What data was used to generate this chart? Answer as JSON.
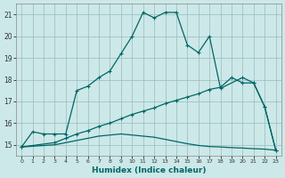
{
  "xlabel": "Humidex (Indice chaleur)",
  "xlim": [
    -0.5,
    23.5
  ],
  "ylim": [
    14.5,
    21.5
  ],
  "xticks": [
    0,
    1,
    2,
    3,
    4,
    5,
    6,
    7,
    8,
    9,
    10,
    11,
    12,
    13,
    14,
    15,
    16,
    17,
    18,
    19,
    20,
    21,
    22,
    23
  ],
  "yticks": [
    15,
    16,
    17,
    18,
    19,
    20,
    21
  ],
  "background_color": "#cce8e8",
  "grid_color": "#99bbbb",
  "line_color": "#006666",
  "line_top_x": [
    0,
    1,
    2,
    3,
    4,
    5,
    6,
    7,
    8,
    9,
    10,
    11,
    12,
    13,
    14,
    15,
    16,
    17,
    18,
    20,
    21,
    22,
    23
  ],
  "line_top_y": [
    14.9,
    15.6,
    15.5,
    15.5,
    15.5,
    17.5,
    17.7,
    18.1,
    18.4,
    19.2,
    20.0,
    21.1,
    20.85,
    21.1,
    21.1,
    19.6,
    19.25,
    20.0,
    17.6,
    18.1,
    17.85,
    16.75,
    14.75
  ],
  "line_mid_x": [
    0,
    3,
    4,
    5,
    6,
    7,
    8,
    9,
    10,
    11,
    12,
    13,
    14,
    15,
    16,
    17,
    18,
    19,
    20,
    21,
    22,
    23
  ],
  "line_mid_y": [
    14.9,
    15.1,
    15.3,
    15.5,
    15.65,
    15.85,
    16.0,
    16.2,
    16.4,
    16.55,
    16.7,
    16.9,
    17.05,
    17.2,
    17.35,
    17.55,
    17.65,
    18.1,
    17.85,
    17.85,
    16.75,
    14.75
  ],
  "line_bot_x": [
    0,
    3,
    4,
    5,
    6,
    7,
    8,
    9,
    10,
    11,
    12,
    13,
    14,
    15,
    16,
    17,
    18,
    19,
    20,
    21,
    22,
    23
  ],
  "line_bot_y": [
    14.9,
    15.0,
    15.1,
    15.2,
    15.3,
    15.4,
    15.45,
    15.5,
    15.45,
    15.4,
    15.35,
    15.25,
    15.15,
    15.05,
    14.97,
    14.92,
    14.9,
    14.87,
    14.85,
    14.82,
    14.8,
    14.75
  ]
}
